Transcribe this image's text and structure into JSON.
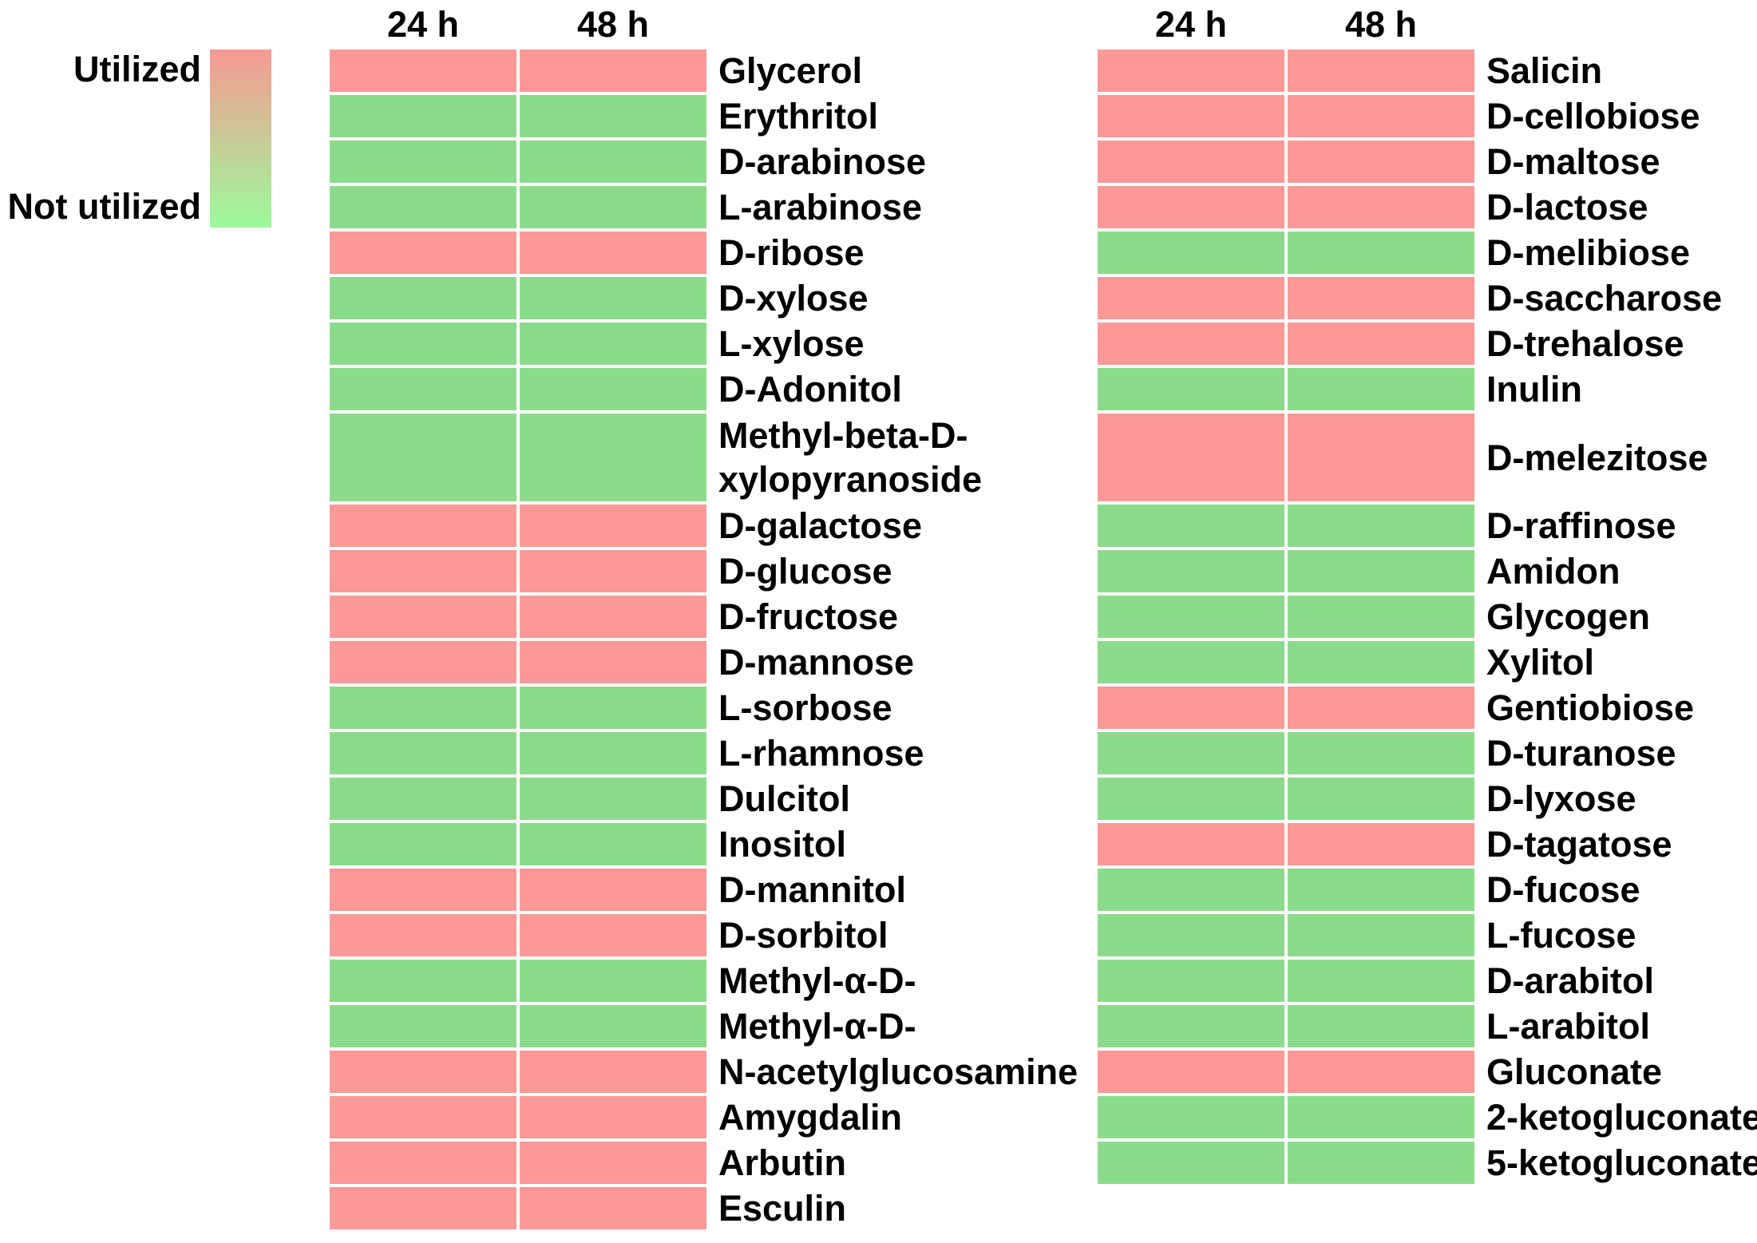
{
  "legend": {
    "top_label": "Utilized",
    "bottom_label": "Not utilized",
    "top_color": "#f79a93",
    "bottom_color": "#9bfa9b"
  },
  "value_colors": {
    "utilized": "#fb9898",
    "not_utilized": "#8cdb8c"
  },
  "chart_data": {
    "type": "heatmap",
    "title": "",
    "columns": [
      "24 h",
      "48 h"
    ],
    "value_legend": {
      "1": "Utilized (red)",
      "0": "Not utilized (green)"
    },
    "panels": [
      {
        "name": "left",
        "col_headers": [
          "24 h",
          "48 h"
        ],
        "rows": [
          {
            "label": "Glycerol",
            "values": [
              1,
              1
            ]
          },
          {
            "label": "Erythritol",
            "values": [
              0,
              0
            ]
          },
          {
            "label": "D-arabinose",
            "values": [
              0,
              0
            ]
          },
          {
            "label": "L-arabinose",
            "values": [
              0,
              0
            ]
          },
          {
            "label": "D-ribose",
            "values": [
              1,
              1
            ]
          },
          {
            "label": "D-xylose",
            "values": [
              0,
              0
            ]
          },
          {
            "label": "L-xylose",
            "values": [
              0,
              0
            ]
          },
          {
            "label": "D-Adonitol",
            "values": [
              0,
              0
            ]
          },
          {
            "label": "Methyl-beta-D-\nxylopyranoside",
            "values": [
              0,
              0
            ],
            "tall": true
          },
          {
            "label": "D-galactose",
            "values": [
              1,
              1
            ]
          },
          {
            "label": "D-glucose",
            "values": [
              1,
              1
            ]
          },
          {
            "label": "D-fructose",
            "values": [
              1,
              1
            ]
          },
          {
            "label": "D-mannose",
            "values": [
              1,
              1
            ]
          },
          {
            "label": "L-sorbose",
            "values": [
              0,
              0
            ]
          },
          {
            "label": "L-rhamnose",
            "values": [
              0,
              0
            ]
          },
          {
            "label": "Dulcitol",
            "values": [
              0,
              0
            ]
          },
          {
            "label": "Inositol",
            "values": [
              0,
              0
            ]
          },
          {
            "label": "D-mannitol",
            "values": [
              1,
              1
            ]
          },
          {
            "label": "D-sorbitol",
            "values": [
              1,
              1
            ]
          },
          {
            "label": "Methyl-α-D-",
            "values": [
              0,
              0
            ]
          },
          {
            "label": "Methyl-α-D-",
            "values": [
              0,
              0
            ]
          },
          {
            "label": "N-acetylglucosamine",
            "values": [
              1,
              1
            ]
          },
          {
            "label": "Amygdalin",
            "values": [
              1,
              1
            ]
          },
          {
            "label": "Arbutin",
            "values": [
              1,
              1
            ]
          },
          {
            "label": "Esculin",
            "values": [
              1,
              1
            ]
          }
        ]
      },
      {
        "name": "right",
        "col_headers": [
          "24 h",
          "48 h"
        ],
        "rows": [
          {
            "label": "Salicin",
            "values": [
              1,
              1
            ]
          },
          {
            "label": "D-cellobiose",
            "values": [
              1,
              1
            ]
          },
          {
            "label": "D-maltose",
            "values": [
              1,
              1
            ]
          },
          {
            "label": "D-lactose",
            "values": [
              1,
              1
            ]
          },
          {
            "label": "D-melibiose",
            "values": [
              0,
              0
            ]
          },
          {
            "label": "D-saccharose",
            "values": [
              1,
              1
            ]
          },
          {
            "label": "D-trehalose",
            "values": [
              1,
              1
            ]
          },
          {
            "label": "Inulin",
            "values": [
              0,
              0
            ]
          },
          {
            "label": "D-melezitose",
            "values": [
              1,
              1
            ],
            "tall": true
          },
          {
            "label": "D-raffinose",
            "values": [
              0,
              0
            ]
          },
          {
            "label": "Amidon",
            "values": [
              0,
              0
            ]
          },
          {
            "label": "Glycogen",
            "values": [
              0,
              0
            ]
          },
          {
            "label": "Xylitol",
            "values": [
              0,
              0
            ]
          },
          {
            "label": "Gentiobiose",
            "values": [
              1,
              1
            ]
          },
          {
            "label": "D-turanose",
            "values": [
              0,
              0
            ]
          },
          {
            "label": "D-lyxose",
            "values": [
              0,
              0
            ]
          },
          {
            "label": "D-tagatose",
            "values": [
              1,
              1
            ]
          },
          {
            "label": "D-fucose",
            "values": [
              0,
              0
            ]
          },
          {
            "label": "L-fucose",
            "values": [
              0,
              0
            ]
          },
          {
            "label": "D-arabitol",
            "values": [
              0,
              0
            ]
          },
          {
            "label": "L-arabitol",
            "values": [
              0,
              0
            ]
          },
          {
            "label": "Gluconate",
            "values": [
              1,
              1
            ]
          },
          {
            "label": "2-ketogluconate",
            "values": [
              0,
              0
            ]
          },
          {
            "label": "5-ketogluconate",
            "values": [
              0,
              0
            ]
          }
        ]
      }
    ]
  }
}
